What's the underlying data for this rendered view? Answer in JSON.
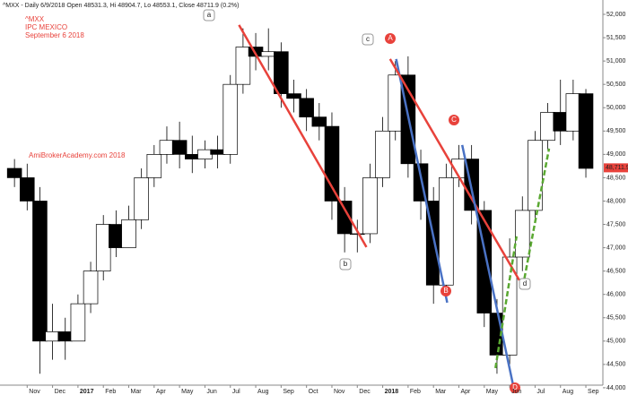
{
  "chart_data": {
    "type": "candlestick",
    "header": "^MXX - Daily 6/9/2018 Open 48531.3, Hi 48904.7, Lo 48553.1, Close 48711.9 (0.2%)",
    "title": "^MXX",
    "subtitle": "IPC MEXICO",
    "date_label": "September 6 2018",
    "watermark": "AmiBrokerAcademy.com  2018",
    "last_price": {
      "value": 48711.9,
      "label": "48,711.9"
    },
    "up_color": "#ffffff",
    "down_color": "#000000",
    "x": [
      -0.5,
      0,
      0.5,
      1,
      1.5,
      2,
      2.5,
      3,
      3.5,
      4,
      4.5,
      5,
      5.5,
      6,
      6.5,
      7,
      7.5,
      8,
      8.5,
      9,
      9.5,
      10,
      10.5,
      11,
      11.5,
      12,
      12.5,
      13,
      13.5,
      14,
      14.5,
      15,
      15.5,
      16,
      16.5,
      17,
      17.5,
      18,
      18.5,
      19,
      19.5,
      20,
      20.5,
      21,
      21.5,
      22
    ],
    "open": [
      48700,
      48500,
      48000,
      45000,
      45200,
      45000,
      45800,
      46500,
      47500,
      47000,
      47600,
      48500,
      49000,
      49300,
      49000,
      48900,
      49100,
      49000,
      50500,
      51300,
      51100,
      51200,
      50300,
      50200,
      49800,
      49600,
      48000,
      47300,
      47300,
      48500,
      49500,
      50700,
      48800,
      48000,
      46200,
      48500,
      48900,
      47800,
      45600,
      44700,
      46800,
      47800,
      49300,
      49900,
      49500,
      50300
    ],
    "high": [
      48900,
      48800,
      48300,
      45800,
      45500,
      46000,
      46700,
      47700,
      47800,
      47900,
      48700,
      49200,
      49600,
      49700,
      49400,
      49300,
      49400,
      50700,
      51700,
      51600,
      51700,
      51400,
      50600,
      50400,
      50100,
      49900,
      48300,
      47600,
      48800,
      49800,
      51000,
      51100,
      49100,
      48300,
      48800,
      49200,
      49200,
      48000,
      45900,
      47200,
      48100,
      49500,
      50100,
      50600,
      50600,
      50400
    ],
    "low": [
      48300,
      47800,
      44300,
      44600,
      44600,
      45000,
      45600,
      46300,
      46800,
      47000,
      47400,
      48300,
      48800,
      48700,
      48600,
      48700,
      48700,
      48800,
      50300,
      50800,
      50800,
      50000,
      49900,
      49500,
      49300,
      47600,
      46900,
      46900,
      47100,
      48300,
      49300,
      48500,
      47600,
      45800,
      46000,
      48300,
      47500,
      45300,
      44300,
      44500,
      46500,
      47600,
      49100,
      49200,
      49300,
      48500
    ],
    "close": [
      48500,
      48000,
      45000,
      45200,
      45000,
      45800,
      46500,
      47500,
      47000,
      47600,
      48500,
      49000,
      49300,
      49000,
      48900,
      49100,
      49000,
      50500,
      51300,
      51100,
      51200,
      50300,
      50200,
      49800,
      49600,
      48000,
      47300,
      47300,
      48500,
      49500,
      50700,
      48800,
      48000,
      46200,
      48500,
      48900,
      47800,
      45600,
      44700,
      46800,
      47800,
      49300,
      49900,
      49500,
      50300,
      48700
    ],
    "xlim": [
      -1.07,
      22.67
    ],
    "xticks": [
      {
        "value": 0,
        "label": "Nov"
      },
      {
        "value": 1,
        "label": "Dec"
      },
      {
        "value": 2,
        "label": "2017"
      },
      {
        "value": 3,
        "label": "Feb"
      },
      {
        "value": 4,
        "label": "Mar"
      },
      {
        "value": 5,
        "label": "Apr"
      },
      {
        "value": 6,
        "label": "May"
      },
      {
        "value": 7,
        "label": "Jun"
      },
      {
        "value": 8,
        "label": "Jul"
      },
      {
        "value": 9,
        "label": "Aug"
      },
      {
        "value": 10,
        "label": "Sep"
      },
      {
        "value": 11,
        "label": "Oct"
      },
      {
        "value": 12,
        "label": "Nov"
      },
      {
        "value": 13,
        "label": "Dec"
      },
      {
        "value": 14,
        "label": "2018"
      },
      {
        "value": 15,
        "label": "Feb"
      },
      {
        "value": 16,
        "label": "Mar"
      },
      {
        "value": 17,
        "label": "Apr"
      },
      {
        "value": 18,
        "label": "May"
      },
      {
        "value": 19,
        "label": "Jun"
      },
      {
        "value": 20,
        "label": "Jul"
      },
      {
        "value": 21,
        "label": "Aug"
      },
      {
        "value": 22,
        "label": "Sep"
      }
    ],
    "ylim": [
      43941,
      52173
    ],
    "yticks": [
      {
        "value": 44000,
        "label": "44,000"
      },
      {
        "value": 44500,
        "label": "44,500"
      },
      {
        "value": 45000,
        "label": "45,000"
      },
      {
        "value": 45500,
        "label": "45,500"
      },
      {
        "value": 46000,
        "label": "46,000"
      },
      {
        "value": 46500,
        "label": "46,500"
      },
      {
        "value": 47000,
        "label": "47,000"
      },
      {
        "value": 47500,
        "label": "47,500"
      },
      {
        "value": 48000,
        "label": "48,000"
      },
      {
        "value": 48500,
        "label": "48,500"
      },
      {
        "value": 49000,
        "label": "49,000"
      },
      {
        "value": 49500,
        "label": "49,500"
      },
      {
        "value": 50000,
        "label": "50,000"
      },
      {
        "value": 50500,
        "label": "50,500"
      },
      {
        "value": 51000,
        "label": "51,000"
      },
      {
        "value": 51500,
        "label": "51,500"
      },
      {
        "value": 52000,
        "label": "52,000"
      }
    ],
    "trend_lines": [
      {
        "x": [
          8.34,
          13.36
        ],
        "y": [
          51773,
          47013
        ],
        "color": "#e8423b",
        "dashed": false
      },
      {
        "x": [
          14.53,
          16.54
        ],
        "y": [
          51044,
          45823
        ],
        "color": "#4a72c4",
        "dashed": false
      },
      {
        "x": [
          14.29,
          19.38
        ],
        "y": [
          51044,
          46303
        ],
        "color": "#e8423b",
        "dashed": false
      },
      {
        "x": [
          17.13,
          19.24
        ],
        "y": [
          49201,
          43789
        ],
        "color": "#4a72c4",
        "dashed": false
      },
      {
        "x": [
          18.44,
          19.27
        ],
        "y": [
          44422,
          47244
        ],
        "color": "#5aa832",
        "dashed": true
      },
      {
        "x": [
          19.58,
          20.55
        ],
        "y": [
          46342,
          49125
        ],
        "color": "#5aa832",
        "dashed": true
      }
    ],
    "point_labels": [
      "a",
      "b",
      "c",
      "d"
    ],
    "wave_labels": [
      "A",
      "B",
      "C",
      "D"
    ]
  }
}
